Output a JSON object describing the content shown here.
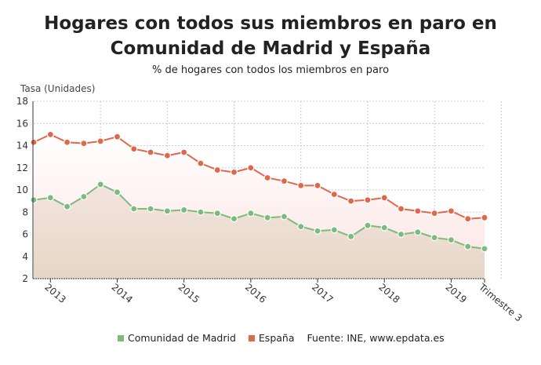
{
  "chart_data": {
    "type": "area",
    "title": "Hogares con todos sus miembros en paro en Comunidad de Madrid y España",
    "subtitle": "% de hogares con todos los miembros en paro",
    "ylabel": "Tasa (Unidades)",
    "ylim": [
      2,
      18
    ],
    "yticks": [
      2,
      4,
      6,
      8,
      10,
      12,
      14,
      16,
      18
    ],
    "xtick_labels": [
      "2013",
      "2014",
      "2015",
      "2016",
      "2017",
      "2018",
      "2019",
      "Trimestre 3"
    ],
    "xtick_index": [
      1,
      5,
      9,
      13,
      17,
      21,
      25,
      27
    ],
    "grid": true,
    "legend_position": "bottom",
    "source": "Fuente: INE, www.epdata.es",
    "series": [
      {
        "name": "Comunidad de Madrid",
        "color": "#7dbb7d",
        "values": [
          9.1,
          9.3,
          8.5,
          9.4,
          10.5,
          9.8,
          8.3,
          8.3,
          8.1,
          8.2,
          8.0,
          7.9,
          7.4,
          7.9,
          7.5,
          7.6,
          6.7,
          6.3,
          6.4,
          5.8,
          6.8,
          6.6,
          6.0,
          6.2,
          5.7,
          5.5,
          4.9,
          4.7
        ]
      },
      {
        "name": "España",
        "color": "#e0674b",
        "values": [
          14.3,
          15.0,
          14.3,
          14.2,
          14.4,
          14.8,
          13.7,
          13.4,
          13.1,
          13.4,
          12.4,
          11.8,
          11.6,
          12.0,
          11.1,
          10.8,
          10.4,
          10.4,
          9.6,
          9.0,
          9.1,
          9.3,
          8.3,
          8.1,
          7.9,
          8.1,
          7.4,
          7.5
        ]
      }
    ]
  }
}
